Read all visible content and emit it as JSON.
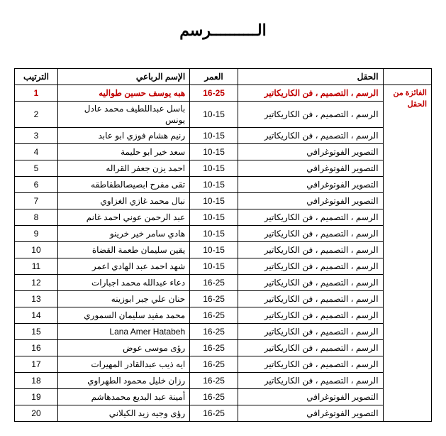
{
  "title": "الــــــــــرسم",
  "headers": {
    "rank": "الترتيب",
    "name": "الإسم الرباعي",
    "age": "العمر",
    "field": "الحقل",
    "winner": ""
  },
  "winner_label": "الفائزة من الحقل",
  "rows": [
    {
      "rank": "1",
      "name": "هبه يوسف حسين طواليه",
      "age": "16-25",
      "field": "الرسم ، التصميم ، فن الكاريكاتير",
      "is_winner": true
    },
    {
      "rank": "2",
      "name": "باسل عبداللطيف محمد عادل يونس",
      "age": "10-15",
      "field": "الرسم ، التصميم ، فن الكاريكاتير",
      "is_winner": false
    },
    {
      "rank": "3",
      "name": "رنيم هشام فوزي ابو عابد",
      "age": "10-15",
      "field": "الرسم ، التصميم ، فن الكاريكاتير",
      "is_winner": false
    },
    {
      "rank": "4",
      "name": "سعد خير ابو حليمة",
      "age": "10-15",
      "field": "التصوير الفوتوغرافي",
      "is_winner": false
    },
    {
      "rank": "5",
      "name": "احمد يزن جعفر القراله",
      "age": "10-15",
      "field": "التصوير الفوتوغرافي",
      "is_winner": false
    },
    {
      "rank": "6",
      "name": "تقى مفرح ابصيصالطقاطقه",
      "age": "10-15",
      "field": "التصوير الفوتوغرافي",
      "is_winner": false
    },
    {
      "rank": "7",
      "name": "نبال محمد غازي الغزاوي",
      "age": "10-15",
      "field": "التصوير الفوتوغرافي",
      "is_winner": false
    },
    {
      "rank": "8",
      "name": "عبد الرحمن عوني احمد غانم",
      "age": "10-15",
      "field": "الرسم ، التصميم ، فن الكاريكاتير",
      "is_winner": false
    },
    {
      "rank": "9",
      "name": "هادي سامر خير خرينو",
      "age": "10-15",
      "field": "الرسم ، التصميم ، فن الكاريكاتير",
      "is_winner": false
    },
    {
      "rank": "10",
      "name": "يقين سليمان طعمة القضاة",
      "age": "10-15",
      "field": "الرسم ، التصميم ، فن الكاريكاتير",
      "is_winner": false
    },
    {
      "rank": "11",
      "name": "شهد احمد عبد الهادي اعمر",
      "age": "10-15",
      "field": "الرسم ، التصميم ، فن الكاريكاتير",
      "is_winner": false
    },
    {
      "rank": "12",
      "name": "دعاء عبدالله محمد اجبارات",
      "age": "16-25",
      "field": "الرسم ، التصميم ، فن الكاريكاتير",
      "is_winner": false
    },
    {
      "rank": "13",
      "name": "حنان علي جبر ابوزينه",
      "age": "16-25",
      "field": "الرسم ، التصميم ، فن الكاريكاتير",
      "is_winner": false
    },
    {
      "rank": "14",
      "name": "محمد مفيد سليمان السموري",
      "age": "16-25",
      "field": "الرسم ، التصميم ، فن الكاريكاتير",
      "is_winner": false
    },
    {
      "rank": "15",
      "name": "Lana Amer Hatabeh",
      "age": "16-25",
      "field": "الرسم ، التصميم ، فن الكاريكاتير",
      "is_winner": false
    },
    {
      "rank": "16",
      "name": "رؤى موسى عوض",
      "age": "16-25",
      "field": "الرسم ، التصميم ، فن الكاريكاتير",
      "is_winner": false
    },
    {
      "rank": "17",
      "name": "ايه ذيب عبدالقادر المهيرات",
      "age": "16-25",
      "field": "الرسم ، التصميم ، فن الكاريكاتير",
      "is_winner": false
    },
    {
      "rank": "18",
      "name": "رزان خليل محمود الطهراوي",
      "age": "16-25",
      "field": "الرسم ، التصميم ، فن الكاريكاتير",
      "is_winner": false
    },
    {
      "rank": "19",
      "name": "أمينة عبد البديع محمدهاشم",
      "age": "16-25",
      "field": "التصوير الفوتوغرافي",
      "is_winner": false
    },
    {
      "rank": "20",
      "name": "رؤى وجيه زيد الكيلاني",
      "age": "16-25",
      "field": "التصوير الفوتوغرافي",
      "is_winner": false
    }
  ]
}
